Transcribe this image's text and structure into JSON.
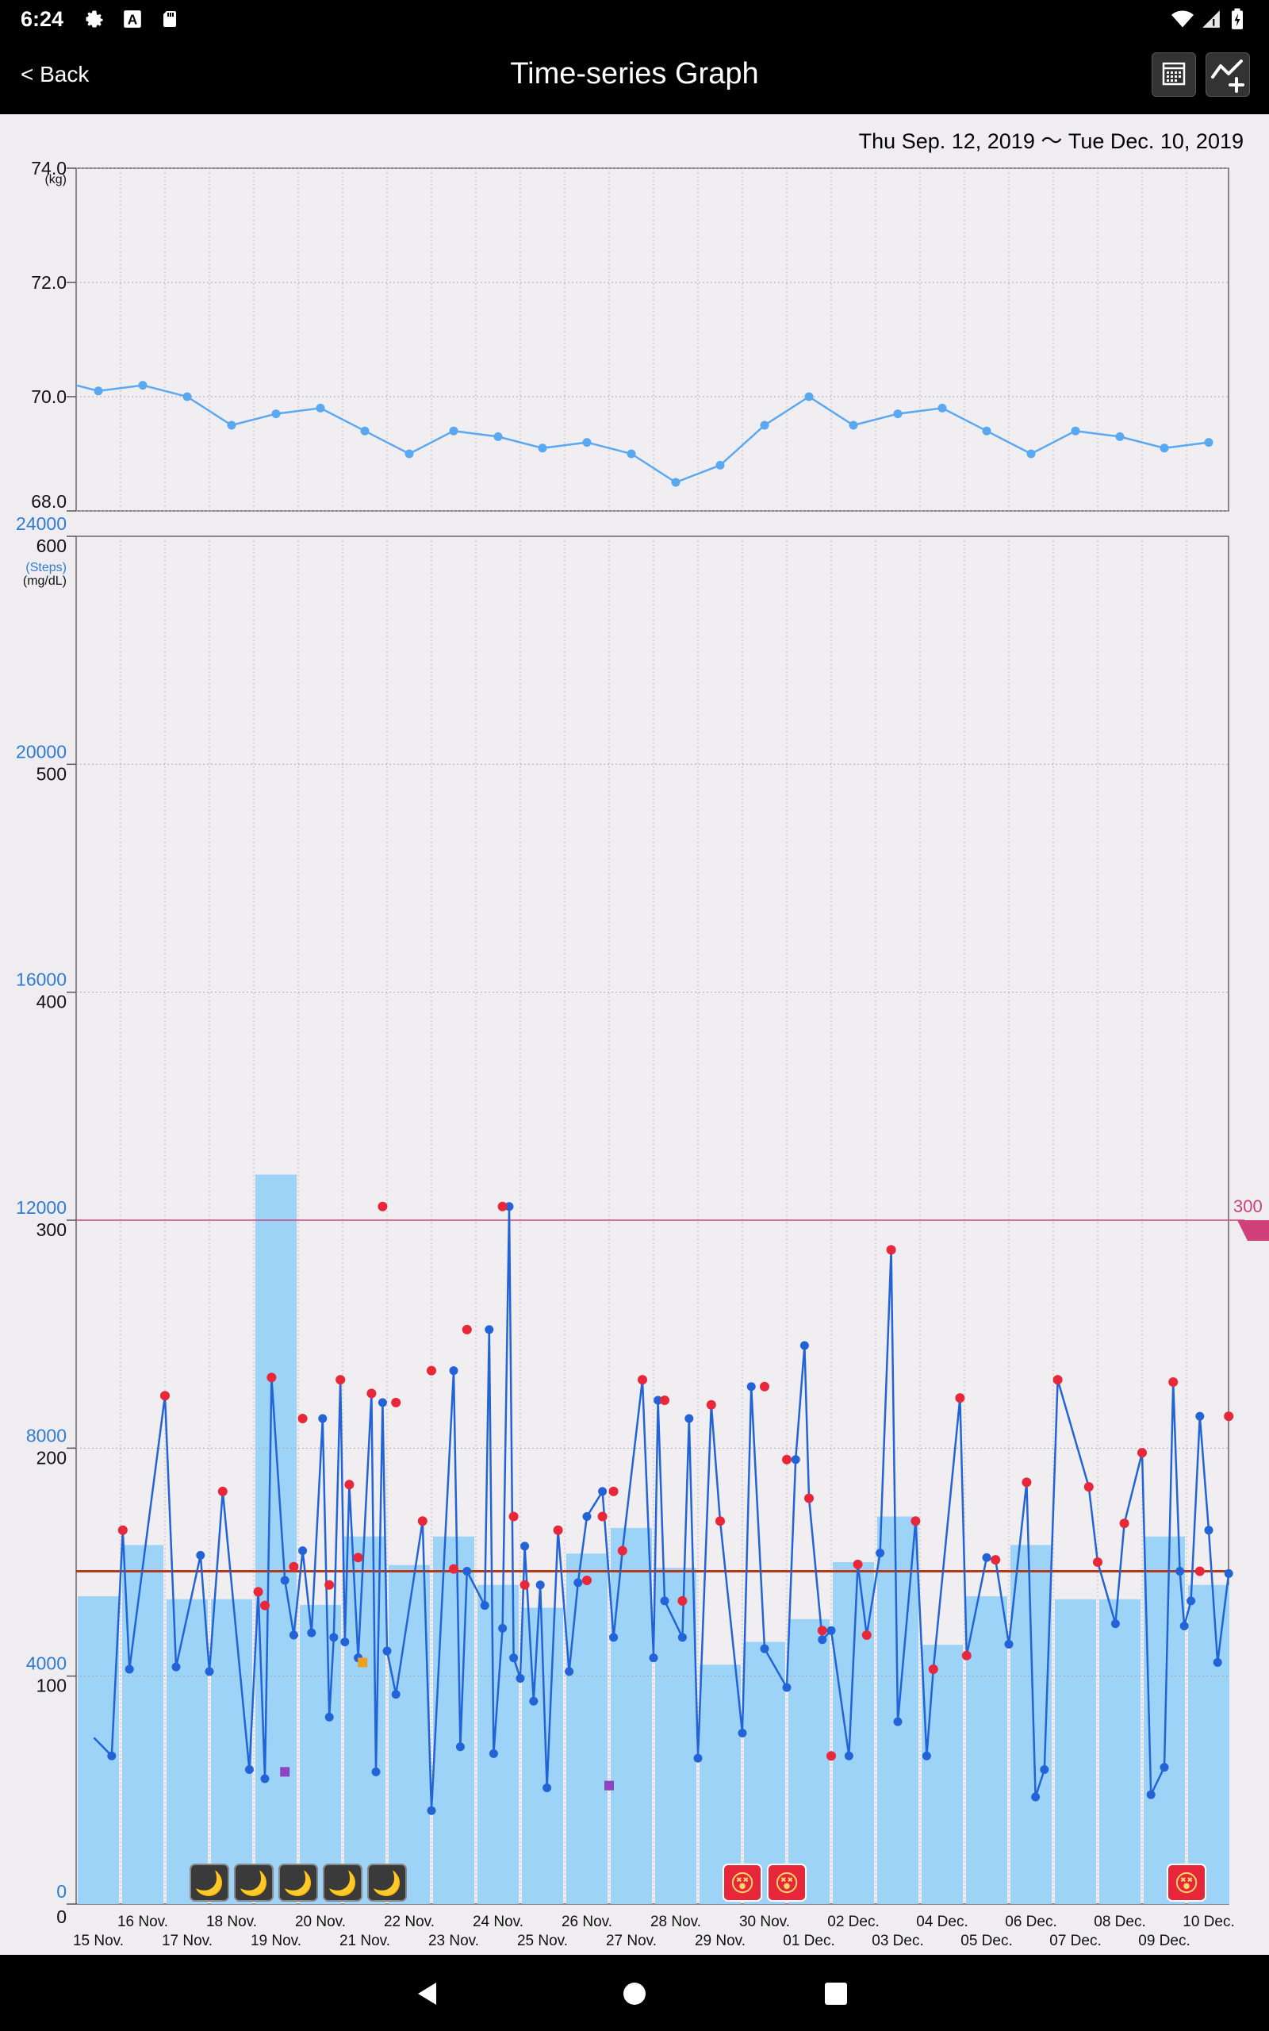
{
  "status_bar": {
    "time": "6:24",
    "icons": [
      "gear-icon",
      "font-a-icon",
      "sd-card-icon",
      "wifi-icon",
      "signal-icon",
      "battery-charging-icon"
    ]
  },
  "app_bar": {
    "back_label": "< Back",
    "title": "Time-series Graph",
    "actions": [
      "calendar-icon",
      "add-graph-icon"
    ]
  },
  "date_range": "Thu Sep. 12, 2019 〜 Tue Dec. 10, 2019",
  "colors": {
    "weight_line": "#5aa9f0",
    "bar": "#9dd3f6",
    "glucose_line": "#2264d8",
    "high_marker": "#e8283a",
    "low_marker": "#8e44c0",
    "extra_marker": "#f0a020",
    "threshold": "#d0407a",
    "average_line": "#b33a1a",
    "steps_axis": "#2f7bd6"
  },
  "x_labels": {
    "upper": [
      "16 Nov.",
      "18 Nov.",
      "20 Nov.",
      "22 Nov.",
      "24 Nov.",
      "26 Nov.",
      "28 Nov.",
      "30 Nov.",
      "02 Dec.",
      "04 Dec.",
      "06 Dec.",
      "08 Dec.",
      "10 Dec."
    ],
    "lower": [
      "15 Nov.",
      "17 Nov.",
      "19 Nov.",
      "21 Nov.",
      "23 Nov.",
      "25 Nov.",
      "27 Nov.",
      "29 Nov.",
      "01 Dec.",
      "03 Dec.",
      "05 Dec.",
      "07 Dec.",
      "09 Dec."
    ]
  },
  "chart_data": [
    {
      "type": "line",
      "unit": "(kg)",
      "ylim": [
        68.0,
        74.0
      ],
      "yticks": [
        "74.0",
        "72.0",
        "70.0",
        "68.0"
      ],
      "x": [
        -0.5,
        0.0,
        1.0,
        2.0,
        3.0,
        4.0,
        5.0,
        6.0,
        7.0,
        8.0,
        9.0,
        10.0,
        11.0,
        12.0,
        13.0,
        14.0,
        15.0,
        16.0,
        17.0,
        18.0,
        19.0,
        20.0,
        21.0,
        22.0,
        23.0,
        24.0,
        25.0
      ],
      "values": [
        70.2,
        70.1,
        70.2,
        70.0,
        69.5,
        69.7,
        69.8,
        69.4,
        69.0,
        69.4,
        69.3,
        69.1,
        69.2,
        69.0,
        68.5,
        68.8,
        69.5,
        70.0,
        69.5,
        69.7,
        69.8,
        69.4,
        69.0,
        69.4,
        69.3,
        69.1,
        69.2
      ]
    },
    {
      "type": "bar",
      "unit": "(Steps)",
      "ylim": [
        0,
        24000
      ],
      "yticks": [
        "24000",
        "20000",
        "16000",
        "12000",
        "8000",
        "4000",
        "0"
      ],
      "values": [
        5400,
        6300,
        5350,
        5350,
        12800,
        5250,
        6450,
        5950,
        6450,
        5600,
        5200,
        6150,
        6600,
        5900,
        4200,
        4600,
        5000,
        6000,
        6800,
        4550,
        5400,
        6300,
        5350,
        5350,
        6450,
        5600
      ]
    },
    {
      "type": "line",
      "unit": "(mg/dL)",
      "ylim": [
        0,
        600
      ],
      "yticks": [
        "600",
        "500",
        "400",
        "300",
        "200",
        "100",
        "0"
      ],
      "threshold": "300",
      "average": 146,
      "x": [
        -0.1,
        0.3,
        0.55,
        0.7,
        1.5,
        1.75,
        2.3,
        2.5,
        2.8,
        3.4,
        3.6,
        3.75,
        3.9,
        4.2,
        4.4,
        4.6,
        4.8,
        5.05,
        5.2,
        5.3,
        5.45,
        5.55,
        5.65,
        5.85,
        6.15,
        6.25,
        6.4,
        6.5,
        6.7,
        7.3,
        7.5,
        8.0,
        8.15,
        8.3,
        8.7,
        8.8,
        8.9,
        9.1,
        9.25,
        9.35,
        9.5,
        9.6,
        9.8,
        9.95,
        10.1,
        10.35,
        10.6,
        10.8,
        11.0,
        11.35,
        11.6,
        11.8,
        12.25,
        12.5,
        12.6,
        12.75,
        13.15,
        13.3,
        13.5,
        13.8,
        14.0,
        14.5,
        14.7,
        15.0,
        15.5,
        15.7,
        15.9,
        16.0,
        16.3,
        16.5,
        16.9,
        17.1,
        17.3,
        17.6,
        17.85,
        18.0,
        18.4,
        18.65,
        18.8,
        19.4,
        19.55,
        20.0,
        20.2,
        20.5,
        20.9,
        21.1,
        21.3,
        21.6,
        22.3,
        22.5,
        22.9,
        23.1,
        23.5,
        23.7,
        24.0,
        24.2,
        24.35,
        24.45,
        24.6,
        24.8,
        25.0,
        25.2,
        25.45
      ],
      "values": [
        73,
        65,
        164,
        103,
        223,
        104,
        153,
        102,
        181,
        59,
        137,
        55,
        231,
        142,
        118,
        155,
        119,
        213,
        82,
        117,
        230,
        115,
        184,
        108,
        224,
        58,
        220,
        111,
        92,
        168,
        41,
        234,
        69,
        146,
        131,
        252,
        66,
        121,
        306,
        108,
        99,
        157,
        89,
        140,
        51,
        164,
        102,
        141,
        170,
        181,
        117,
        155,
        230,
        108,
        221,
        133,
        117,
        213,
        64,
        219,
        168,
        75,
        227,
        112,
        95,
        195,
        245,
        178,
        116,
        120,
        65,
        149,
        118,
        154,
        287,
        80,
        168,
        65,
        103,
        222,
        109,
        152,
        151,
        114,
        185,
        47,
        59,
        230,
        183,
        150,
        123,
        167,
        198,
        48,
        60,
        229,
        146,
        122,
        133,
        214,
        164,
        106,
        145
      ],
      "high_markers": [
        [
          0.55,
          164
        ],
        [
          1.5,
          223
        ],
        [
          2.8,
          181
        ],
        [
          3.6,
          137
        ],
        [
          3.75,
          131
        ],
        [
          3.9,
          231
        ],
        [
          4.4,
          148
        ],
        [
          4.6,
          213
        ],
        [
          5.2,
          140
        ],
        [
          5.45,
          230
        ],
        [
          5.65,
          184
        ],
        [
          5.85,
          152
        ],
        [
          6.15,
          224
        ],
        [
          6.4,
          306
        ],
        [
          6.7,
          220
        ],
        [
          7.3,
          168
        ],
        [
          7.5,
          234
        ],
        [
          8.0,
          147
        ],
        [
          8.3,
          252
        ],
        [
          9.1,
          306
        ],
        [
          9.35,
          170
        ],
        [
          9.6,
          140
        ],
        [
          10.35,
          164
        ],
        [
          11.0,
          142
        ],
        [
          11.35,
          170
        ],
        [
          11.6,
          181
        ],
        [
          11.8,
          155
        ],
        [
          12.25,
          230
        ],
        [
          12.75,
          221
        ],
        [
          13.15,
          133
        ],
        [
          13.8,
          219
        ],
        [
          14.0,
          168
        ],
        [
          15.0,
          227
        ],
        [
          15.5,
          195
        ],
        [
          16.0,
          178
        ],
        [
          16.3,
          120
        ],
        [
          16.5,
          65
        ],
        [
          17.1,
          149
        ],
        [
          17.3,
          118
        ],
        [
          17.85,
          287
        ],
        [
          18.4,
          168
        ],
        [
          18.8,
          103
        ],
        [
          19.4,
          222
        ],
        [
          19.55,
          109
        ],
        [
          20.2,
          151
        ],
        [
          20.9,
          185
        ],
        [
          21.6,
          230
        ],
        [
          22.3,
          183
        ],
        [
          22.5,
          150
        ],
        [
          23.1,
          167
        ],
        [
          23.5,
          198
        ],
        [
          24.2,
          229
        ],
        [
          24.8,
          146
        ],
        [
          25.45,
          214
        ]
      ],
      "low_markers": [
        [
          4.2,
          58
        ],
        [
          11.5,
          52
        ]
      ],
      "extra_markers": [
        [
          5.95,
          106
        ]
      ]
    }
  ],
  "event_icons": [
    {
      "name": "moon-icon",
      "x": 2.5,
      "glyph": "🌙"
    },
    {
      "name": "moon-icon",
      "x": 3.5,
      "glyph": "🌙"
    },
    {
      "name": "moon-icon",
      "x": 4.5,
      "glyph": "🌙"
    },
    {
      "name": "moon-icon",
      "x": 5.5,
      "glyph": "🌙"
    },
    {
      "name": "moon-icon",
      "x": 6.5,
      "glyph": "🌙"
    },
    {
      "name": "sick-face-icon",
      "x": 14.5,
      "glyph": "😵"
    },
    {
      "name": "sick-face-icon",
      "x": 15.5,
      "glyph": "😵"
    },
    {
      "name": "sick-face-icon",
      "x": 24.5,
      "glyph": "😵"
    }
  ]
}
